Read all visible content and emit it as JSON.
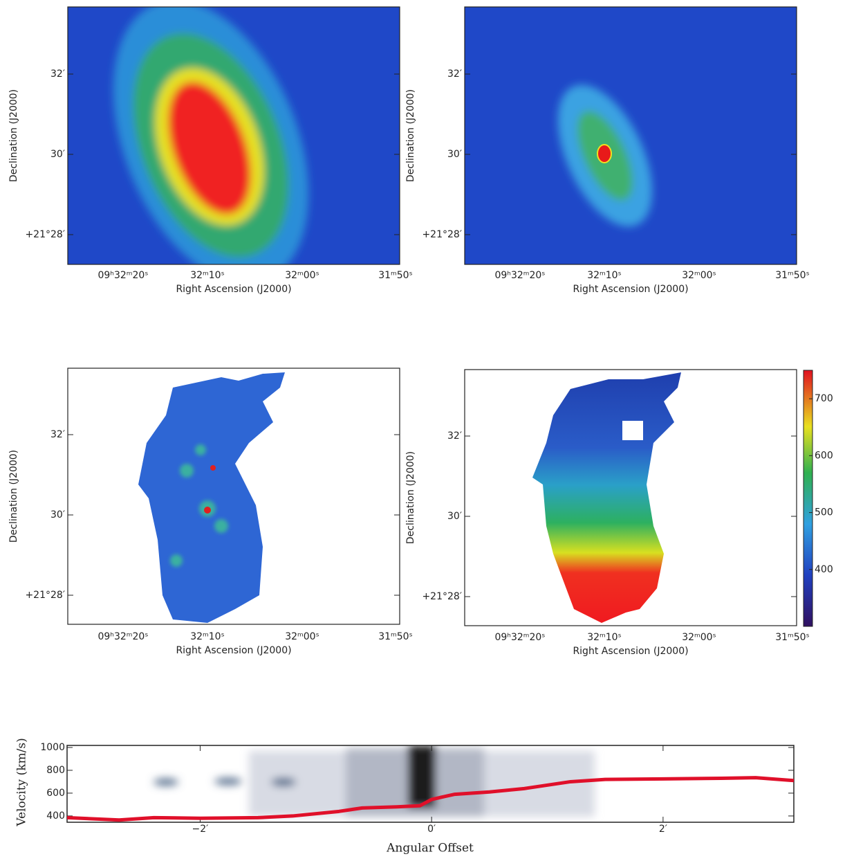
{
  "panels": [
    {
      "y_label": "Declination (J2000)",
      "x_label": "Right Ascension (J2000)",
      "yticks": [
        "32′",
        "30′",
        "+21°28′"
      ],
      "xticks": [
        "09ʰ32ᵐ20ˢ",
        "32ᵐ10ˢ",
        "32ᵐ00ˢ",
        "31ᵐ50ˢ"
      ]
    },
    {
      "y_label": "Declination (J2000)",
      "x_label": "Right Ascension (J2000)",
      "yticks": [
        "32′",
        "30′",
        "+21°28′"
      ],
      "xticks": [
        "09ʰ32ᵐ20ˢ",
        "32ᵐ10ˢ",
        "32ᵐ00ˢ",
        "31ᵐ50ˢ"
      ]
    },
    {
      "y_label": "Declination (J2000)",
      "x_label": "Right Ascension (J2000)",
      "yticks": [
        "32′",
        "30′",
        "+21°28′"
      ],
      "xticks": [
        "09ʰ32ᵐ20ˢ",
        "32ᵐ10ˢ",
        "32ᵐ00ˢ",
        "31ᵐ50ˢ"
      ]
    },
    {
      "y_label": "Declination (J2000)",
      "x_label": "Right Ascension (J2000)",
      "yticks": [
        "32′",
        "30′",
        "+21°28′"
      ],
      "xticks": [
        "09ʰ32ᵐ20ˢ",
        "32ᵐ10ˢ",
        "32ᵐ00ˢ",
        "31ᵐ50ˢ"
      ]
    }
  ],
  "colorbar": {
    "lim": [
      300,
      750
    ],
    "ticks": [
      400,
      500,
      600,
      700
    ]
  },
  "chart_data": {
    "type": "line",
    "x_label": "Angular Offset",
    "y_label": "Velocity (km/s)",
    "x": [
      -3.15,
      -2.7,
      -2.4,
      -2.0,
      -1.5,
      -1.2,
      -0.8,
      -0.6,
      -0.3,
      -0.1,
      0.0,
      0.2,
      0.5,
      0.8,
      1.2,
      1.5,
      2.0,
      2.5,
      2.8,
      3.13
    ],
    "series": [
      {
        "color": "#e0102a",
        "values": [
          385,
          365,
          385,
          380,
          385,
          400,
          440,
          470,
          480,
          490,
          545,
          590,
          610,
          640,
          700,
          720,
          725,
          730,
          735,
          710
        ]
      }
    ],
    "xlim": [
      -3.15,
      3.13
    ],
    "ylim": [
      345,
      1018
    ],
    "xticks": [
      {
        "value": -2,
        "label": "−2′"
      },
      {
        "value": 0,
        "label": "0′"
      },
      {
        "value": 2,
        "label": "2′"
      }
    ],
    "yticks": [
      400,
      600,
      800,
      1000
    ]
  }
}
